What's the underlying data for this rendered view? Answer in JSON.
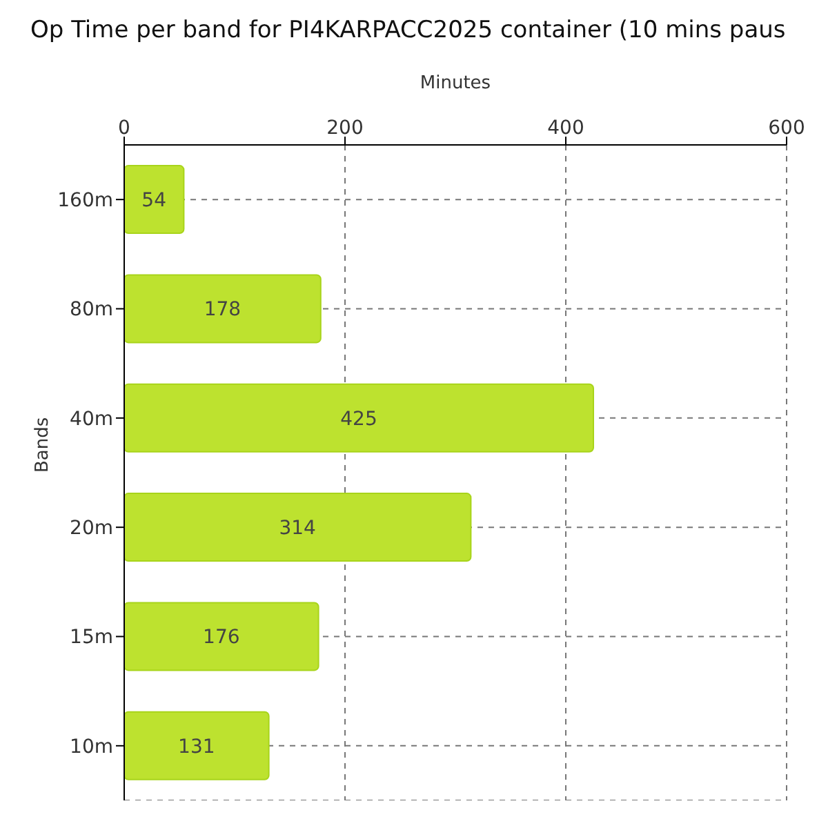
{
  "chart_data": {
    "type": "bar",
    "orientation": "horizontal",
    "title": "Op Time per band for PI4KARPACC2025 container (10 mins paus",
    "xlabel": "Minutes",
    "ylabel": "Bands",
    "categories": [
      "160m",
      "80m",
      "40m",
      "20m",
      "15m",
      "10m"
    ],
    "values": [
      54,
      178,
      425,
      314,
      176,
      131
    ],
    "color": "#bde22f",
    "xlim": [
      0,
      600
    ],
    "xticks": [
      0,
      200,
      400,
      600
    ],
    "grid": true,
    "data_labels": true
  }
}
